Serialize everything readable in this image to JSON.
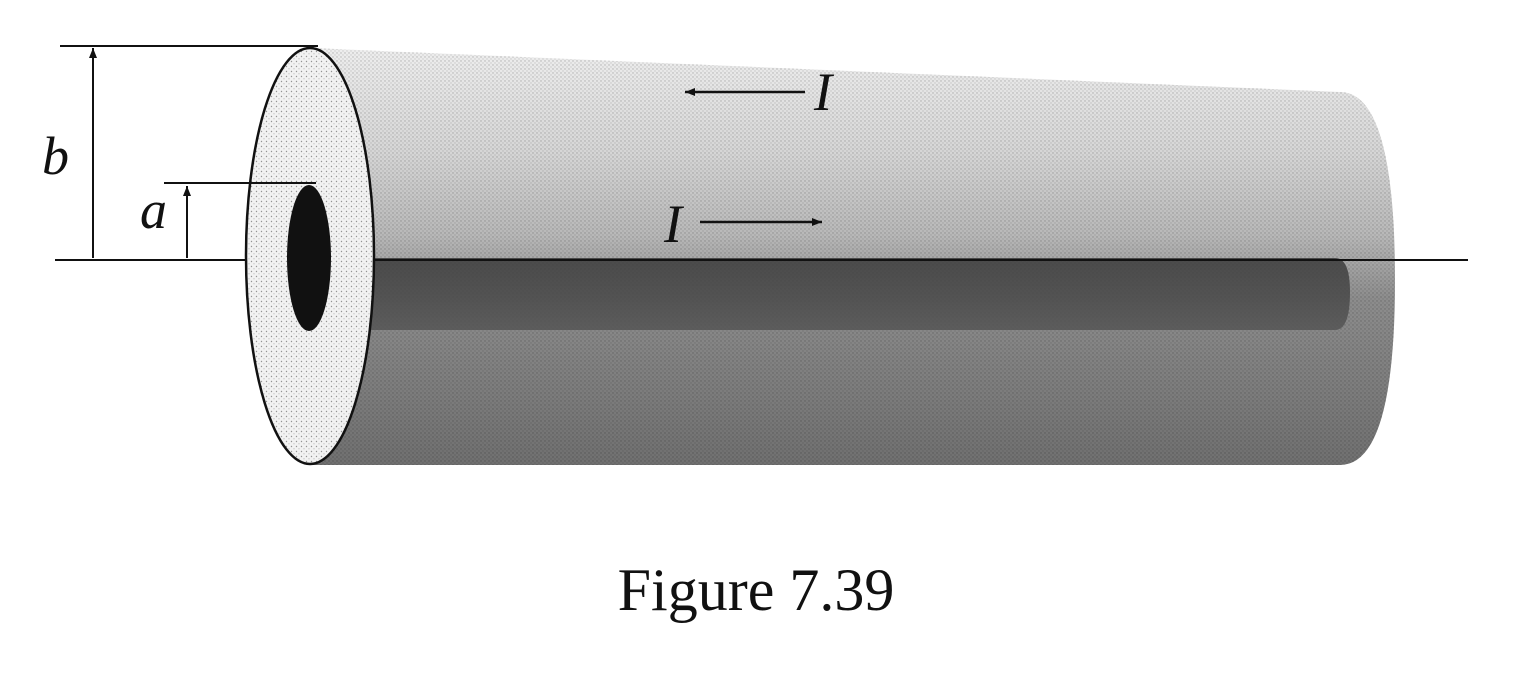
{
  "labels": {
    "outer_radius": "b",
    "inner_radius": "a",
    "current_outer": "I",
    "current_inner": "I"
  },
  "caption": "Figure 7.39",
  "colors": {
    "ink": "#111111",
    "inner_conductor": "#111111",
    "background": "#ffffff"
  }
}
